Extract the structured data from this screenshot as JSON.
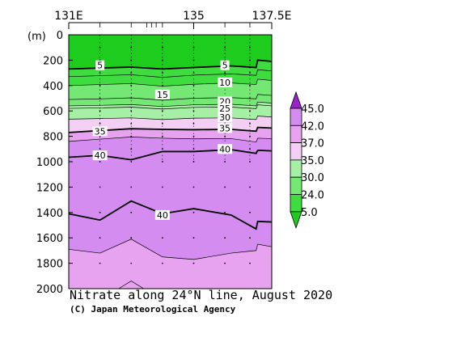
{
  "chart_data": {
    "type": "heatmap",
    "title": "Nitrate along 24°N line, August 2020",
    "credit": "(C) Japan Meteorological Agency",
    "y_unit_label": "(m)",
    "x_tick_labels": [
      {
        "label": "131E",
        "lon": 131.0
      },
      {
        "label": "135",
        "lon": 135.0
      },
      {
        "label": "137.5E",
        "lon": 137.5
      }
    ],
    "xlim": [
      131.0,
      137.5
    ],
    "ylim": [
      0,
      2000
    ],
    "y_inverted": true,
    "y_ticks": [
      0,
      200,
      400,
      600,
      800,
      1000,
      1200,
      1400,
      1600,
      1800,
      2000
    ],
    "station_lons": [
      132.0,
      133.0,
      134.0,
      135.0,
      136.0,
      136.8
    ],
    "sample_depths": [
      100,
      200,
      300,
      400,
      500,
      600,
      700,
      800,
      900,
      1000,
      1200,
      1400,
      1600,
      1800
    ],
    "colorbar": {
      "levels": [
        5.0,
        24.0,
        30.0,
        35.0,
        37.0,
        42.0,
        45.0
      ],
      "labels": [
        "5.0",
        "24.0",
        "30.0",
        "35.0",
        "37.0",
        "42.0",
        "45.0"
      ],
      "colors": [
        "#1ecc1e",
        "#3edc3e",
        "#74e774",
        "#a6f0a6",
        "#f4cff4",
        "#e7a3f0",
        "#d58cf0",
        "#9a22c8"
      ]
    },
    "fill_bands": [
      {
        "below": "c5",
        "color": "#1ecc1e"
      },
      {
        "below": "c15",
        "color": "#3edc3e"
      },
      {
        "below": "c24",
        "color": "#74e774"
      },
      {
        "below": "c30",
        "color": "#a6f0a6"
      },
      {
        "below": "c35",
        "color": "#f4cff4"
      },
      {
        "below": "c37",
        "color": "#e7a3f0"
      },
      {
        "below": "c42",
        "color": "#d58cf0"
      }
    ],
    "contours": [
      {
        "id": "c5",
        "value": 5,
        "bold": true,
        "points": [
          [
            131.0,
            270
          ],
          [
            132.0,
            262
          ],
          [
            133.0,
            255
          ],
          [
            134.0,
            270
          ],
          [
            135.0,
            258
          ],
          [
            136.2,
            245
          ],
          [
            137.0,
            258
          ],
          [
            137.05,
            200
          ],
          [
            137.5,
            210
          ]
        ]
      },
      {
        "id": "c10",
        "value": 10,
        "bold": false,
        "points": [
          [
            131.0,
            330
          ],
          [
            132.0,
            322
          ],
          [
            133.0,
            315
          ],
          [
            134.0,
            335
          ],
          [
            135.0,
            318
          ],
          [
            136.2,
            308
          ],
          [
            137.0,
            320
          ],
          [
            137.05,
            275
          ],
          [
            137.5,
            285
          ]
        ]
      },
      {
        "id": "c15",
        "value": 15,
        "bold": false,
        "points": [
          [
            131.0,
            400
          ],
          [
            132.0,
            392
          ],
          [
            133.0,
            385
          ],
          [
            134.0,
            405
          ],
          [
            135.0,
            390
          ],
          [
            136.2,
            380
          ],
          [
            137.0,
            392
          ],
          [
            137.05,
            350
          ],
          [
            137.5,
            360
          ]
        ]
      },
      {
        "id": "c20",
        "value": 20,
        "bold": false,
        "points": [
          [
            131.0,
            510
          ],
          [
            132.0,
            505
          ],
          [
            133.0,
            497
          ],
          [
            134.0,
            515
          ],
          [
            135.0,
            500
          ],
          [
            136.2,
            495
          ],
          [
            137.0,
            505
          ],
          [
            137.05,
            470
          ],
          [
            137.5,
            478
          ]
        ]
      },
      {
        "id": "c24",
        "value": 24,
        "bold": false,
        "points": [
          [
            131.0,
            560
          ],
          [
            132.0,
            556
          ],
          [
            133.0,
            550
          ],
          [
            134.0,
            565
          ],
          [
            135.0,
            552
          ],
          [
            136.2,
            548
          ],
          [
            137.0,
            560
          ],
          [
            137.05,
            530
          ],
          [
            137.5,
            538
          ]
        ]
      },
      {
        "id": "c25",
        "value": 25,
        "bold": false,
        "points": [
          [
            131.0,
            580
          ],
          [
            132.0,
            576
          ],
          [
            133.0,
            570
          ],
          [
            134.0,
            585
          ],
          [
            135.0,
            572
          ],
          [
            136.2,
            570
          ],
          [
            137.0,
            582
          ],
          [
            137.05,
            552
          ],
          [
            137.5,
            560
          ]
        ]
      },
      {
        "id": "c30",
        "value": 30,
        "bold": false,
        "points": [
          [
            131.0,
            665
          ],
          [
            132.0,
            660
          ],
          [
            133.0,
            655
          ],
          [
            134.0,
            668
          ],
          [
            135.0,
            657
          ],
          [
            136.2,
            655
          ],
          [
            137.0,
            668
          ],
          [
            137.05,
            640
          ],
          [
            137.5,
            648
          ]
        ]
      },
      {
        "id": "c35",
        "value": 35,
        "bold": true,
        "points": [
          [
            131.0,
            770
          ],
          [
            132.0,
            755
          ],
          [
            133.0,
            740
          ],
          [
            134.0,
            745
          ],
          [
            135.0,
            748
          ],
          [
            136.2,
            745
          ],
          [
            137.0,
            760
          ],
          [
            137.05,
            730
          ],
          [
            137.5,
            735
          ]
        ]
      },
      {
        "id": "c37",
        "value": 37,
        "bold": false,
        "points": [
          [
            131.0,
            840
          ],
          [
            132.0,
            822
          ],
          [
            133.0,
            805
          ],
          [
            134.0,
            815
          ],
          [
            135.0,
            820
          ],
          [
            136.2,
            818
          ],
          [
            137.0,
            845
          ],
          [
            137.05,
            815
          ],
          [
            137.5,
            818
          ]
        ]
      },
      {
        "id": "c40",
        "value": 40,
        "bold": true,
        "points": [
          [
            131.0,
            965
          ],
          [
            132.0,
            950
          ],
          [
            133.0,
            985
          ],
          [
            134.0,
            920
          ],
          [
            135.0,
            920
          ],
          [
            136.2,
            905
          ],
          [
            137.0,
            935
          ],
          [
            137.05,
            910
          ],
          [
            137.5,
            915
          ]
        ]
      },
      {
        "id": "c40b",
        "value": 40,
        "bold": true,
        "points": [
          [
            131.0,
            1410
          ],
          [
            132.0,
            1460
          ],
          [
            133.0,
            1310
          ],
          [
            134.0,
            1410
          ],
          [
            135.0,
            1370
          ],
          [
            136.2,
            1420
          ],
          [
            137.0,
            1530
          ],
          [
            137.05,
            1470
          ],
          [
            137.5,
            1475
          ]
        ]
      },
      {
        "id": "c42",
        "value": 42,
        "bold": false,
        "points": [
          [
            131.0,
            1690
          ],
          [
            132.0,
            1720
          ],
          [
            133.0,
            1610
          ],
          [
            134.0,
            1750
          ],
          [
            135.0,
            1770
          ],
          [
            136.2,
            1720
          ],
          [
            137.0,
            1700
          ],
          [
            137.05,
            1650
          ],
          [
            137.5,
            1670
          ]
        ]
      },
      {
        "id": "c42b",
        "value": 42,
        "bold": false,
        "points": [
          [
            132.6,
            2000
          ],
          [
            133.0,
            1940
          ],
          [
            133.4,
            2000
          ]
        ]
      }
    ],
    "contour_labels": [
      {
        "text": "5",
        "lon": 132.0,
        "depth": 240
      },
      {
        "text": "5",
        "lon": 136.0,
        "depth": 240
      },
      {
        "text": "10",
        "lon": 136.0,
        "depth": 375
      },
      {
        "text": "15",
        "lon": 134.0,
        "depth": 470
      },
      {
        "text": "20",
        "lon": 136.0,
        "depth": 525
      },
      {
        "text": "25",
        "lon": 136.0,
        "depth": 580
      },
      {
        "text": "30",
        "lon": 136.0,
        "depth": 650
      },
      {
        "text": "35",
        "lon": 132.0,
        "depth": 760
      },
      {
        "text": "35",
        "lon": 136.0,
        "depth": 735
      },
      {
        "text": "40",
        "lon": 132.0,
        "depth": 950
      },
      {
        "text": "40",
        "lon": 136.0,
        "depth": 900
      },
      {
        "text": "40",
        "lon": 134.0,
        "depth": 1420
      }
    ]
  }
}
